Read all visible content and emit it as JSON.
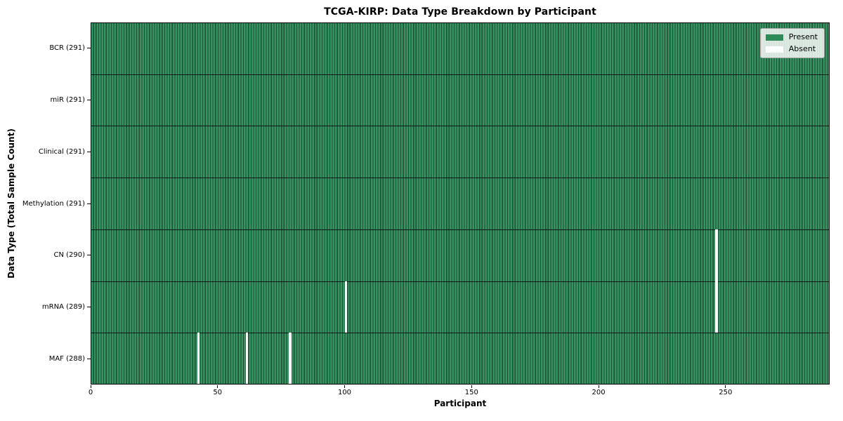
{
  "chart_data": {
    "type": "heatmap",
    "title": "TCGA-KIRP: Data Type Breakdown by Participant",
    "xlabel": "Participant",
    "ylabel": "Data Type (Total Sample Count)",
    "x_range": [
      0,
      291
    ],
    "x_ticks": [
      0,
      50,
      100,
      150,
      200,
      250
    ],
    "n_participants": 291,
    "grid": false,
    "legend_position": "upper right",
    "legend_items": [
      {
        "label": "Present",
        "color": "#2e8b57"
      },
      {
        "label": "Absent",
        "color": "#ffffff"
      }
    ],
    "rows": [
      {
        "label": "BCR (291)",
        "data_type": "BCR",
        "total": 291,
        "absent_participants": []
      },
      {
        "label": "miR (291)",
        "data_type": "miR",
        "total": 291,
        "absent_participants": []
      },
      {
        "label": "Clinical (291)",
        "data_type": "Clinical",
        "total": 291,
        "absent_participants": []
      },
      {
        "label": "Methylation (291)",
        "data_type": "Methylation",
        "total": 291,
        "absent_participants": []
      },
      {
        "label": "CN (290)",
        "data_type": "CN",
        "total": 290,
        "absent_participants": [
          246
        ]
      },
      {
        "label": "mRNA (289)",
        "data_type": "mRNA",
        "total": 289,
        "absent_participants": [
          100,
          246
        ]
      },
      {
        "label": "MAF (288)",
        "data_type": "MAF",
        "total": 288,
        "absent_participants": [
          42,
          61,
          78
        ]
      }
    ],
    "colors": {
      "present": "#2e8b57",
      "absent": "#ffffff",
      "stripe_green": "#389362",
      "bar_edge": "#1c4f33",
      "separator": "#000000",
      "spine": "#000000"
    }
  }
}
